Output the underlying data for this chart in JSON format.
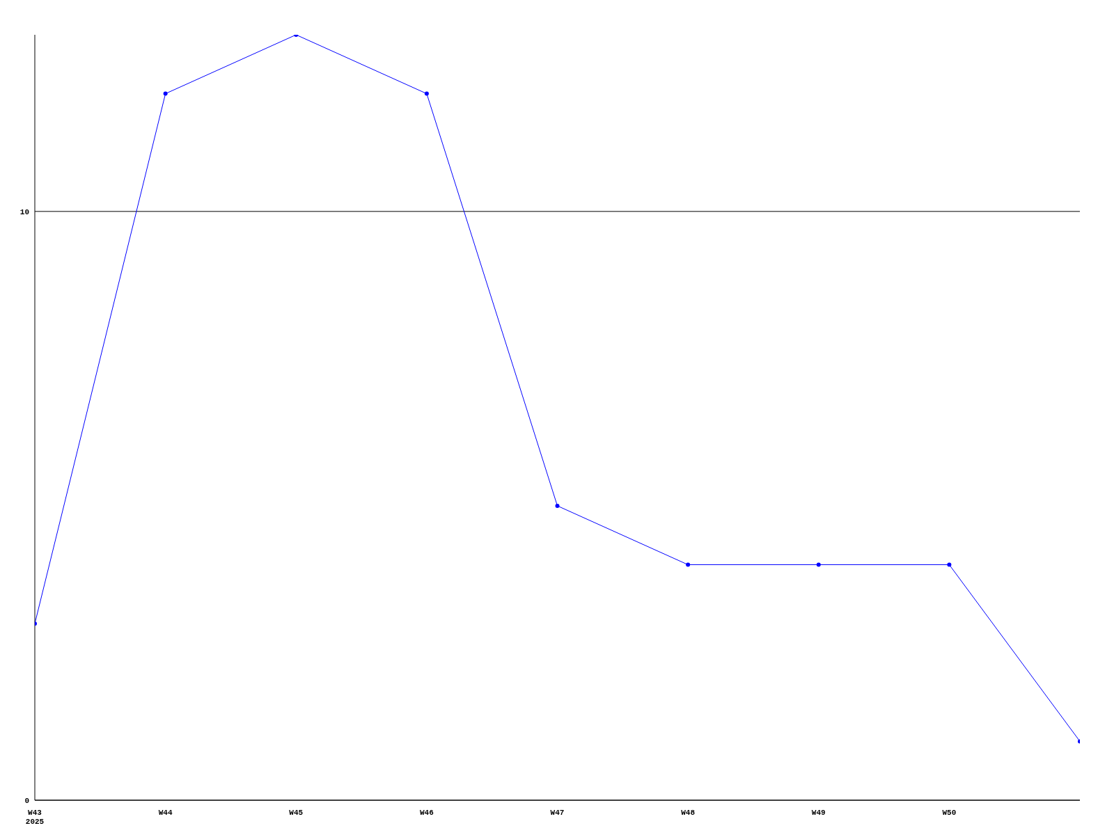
{
  "chart_data": {
    "type": "line",
    "categories": [
      "W43\n2025",
      "W44",
      "W45",
      "W46",
      "W47",
      "W48",
      "W49",
      "W50",
      null
    ],
    "series": [
      {
        "color": "#0000ff",
        "values": [
          3,
          12,
          13,
          12,
          5,
          4,
          4,
          4,
          1
        ]
      }
    ],
    "ylim": [
      0,
      13
    ],
    "yticks": [
      0,
      10
    ],
    "grid": "y",
    "marker": "circle",
    "line_style": "solid",
    "legend": false
  }
}
